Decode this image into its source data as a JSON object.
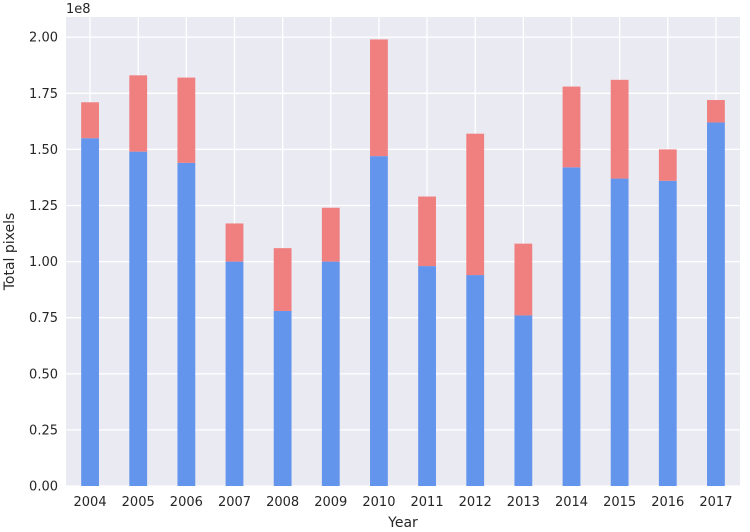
{
  "chart_data": {
    "type": "bar",
    "stacked": true,
    "title": "",
    "xlabel": "Year",
    "ylabel": "Total pixels",
    "y_offset_label": "1e8",
    "y_scale": 100000000,
    "ylim": [
      0,
      2.09
    ],
    "yticks": [
      "0.00",
      "0.25",
      "0.50",
      "0.75",
      "1.00",
      "1.25",
      "1.50",
      "1.75",
      "2.00"
    ],
    "ytick_values": [
      0,
      0.25,
      0.5,
      0.75,
      1.0,
      1.25,
      1.5,
      1.75,
      2.0
    ],
    "grid": true,
    "background_color": "#eaeaf2",
    "categories": [
      "2004",
      "2005",
      "2006",
      "2007",
      "2008",
      "2009",
      "2010",
      "2011",
      "2012",
      "2013",
      "2014",
      "2015",
      "2016",
      "2017"
    ],
    "series": [
      {
        "color": "#6495ed",
        "values": [
          1.55,
          1.49,
          1.44,
          1.0,
          0.78,
          1.0,
          1.47,
          0.98,
          0.94,
          0.76,
          1.42,
          1.37,
          1.36,
          1.62
        ]
      },
      {
        "color": "#f08080",
        "values": [
          0.16,
          0.34,
          0.38,
          0.17,
          0.28,
          0.24,
          0.52,
          0.31,
          0.63,
          0.32,
          0.36,
          0.44,
          0.14,
          0.1
        ]
      }
    ]
  }
}
